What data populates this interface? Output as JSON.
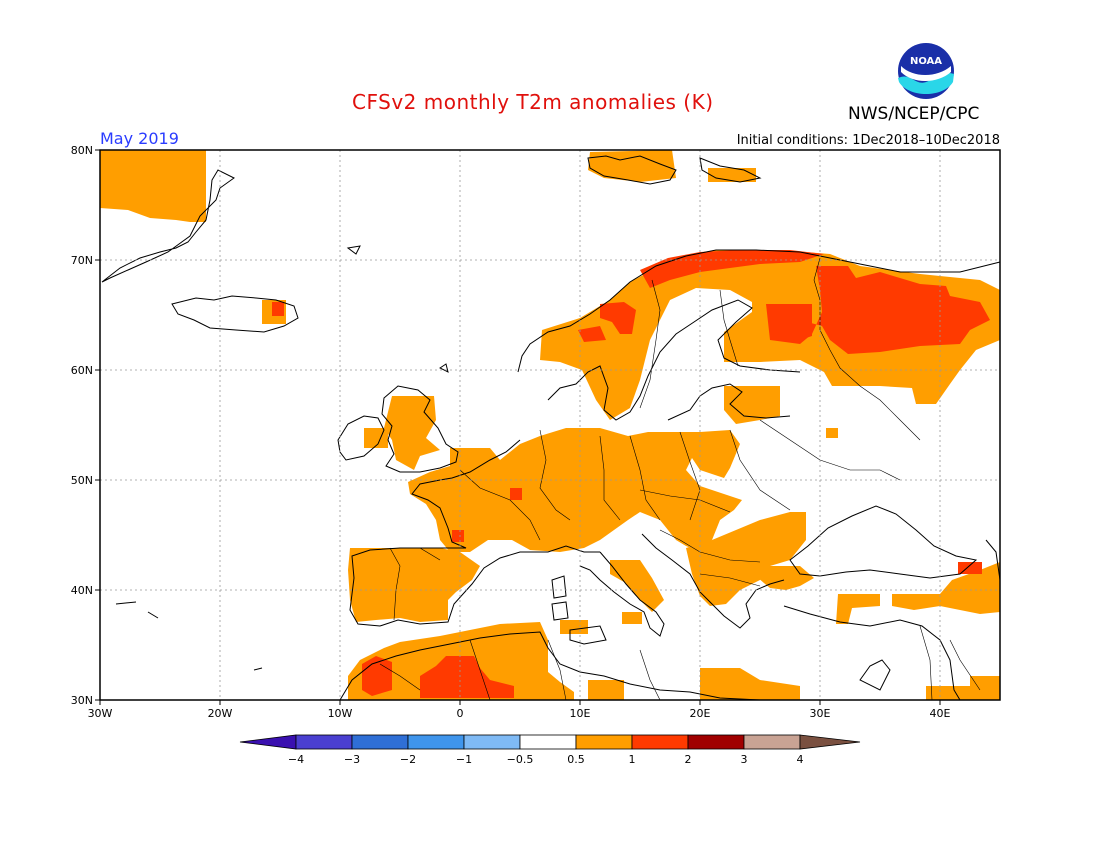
{
  "header": {
    "title": "CFSv2 monthly T2m anomalies (K)",
    "agency": "NWS/NCEP/CPC",
    "logo_text": "NOAA",
    "month": "May 2019",
    "initial_conditions": "Initial conditions: 1Dec2018–10Dec2018"
  },
  "map": {
    "lon_ticks": [
      "30W",
      "20W",
      "10W",
      "0",
      "10E",
      "20E",
      "30E",
      "40E"
    ],
    "lat_ticks": [
      "80N",
      "70N",
      "60N",
      "50N",
      "40N",
      "30N"
    ],
    "lon_range": [
      -30,
      45
    ],
    "lat_range": [
      30,
      80
    ],
    "grid": "dotted"
  },
  "legend": {
    "labels": [
      "−4",
      "−3",
      "−2",
      "−1",
      "−0.5",
      "0.5",
      "1",
      "2",
      "3",
      "4"
    ],
    "colors": [
      "#3a10b0",
      "#4a3fd0",
      "#2f6fd6",
      "#3f95ec",
      "#7fbaf5",
      "#ffffff",
      "#ff9e00",
      "#ff3a00",
      "#a00000",
      "#c9a394",
      "#7a5040"
    ]
  },
  "colors": {
    "anomaly_0_5_to_1": "#ff9e00",
    "anomaly_1_to_2": "#ff3a00",
    "title": "#e0100c",
    "month": "#2a3cff"
  }
}
